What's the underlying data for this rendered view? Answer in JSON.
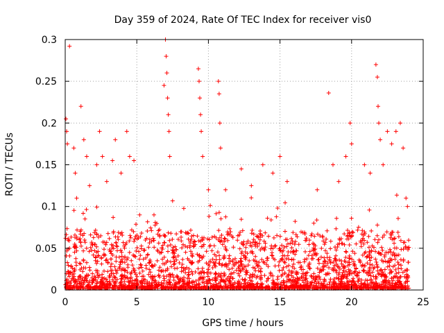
{
  "chart_data": {
    "type": "scatter",
    "title": "Day 359 of 2024, Rate Of TEC Index for receiver vis0",
    "xlabel": "GPS time / hours",
    "ylabel": "ROTI / TECUs",
    "xlim": [
      0,
      25
    ],
    "ylim": [
      0,
      0.3
    ],
    "x_ticks": [
      0,
      5,
      10,
      15,
      20,
      25
    ],
    "x_tick_labels": [
      "0",
      "5",
      "10",
      "15",
      "20",
      "25"
    ],
    "y_ticks": [
      0,
      0.05,
      0.1,
      0.15,
      0.2,
      0.25,
      0.3
    ],
    "y_tick_labels": [
      "0",
      "0.05",
      "0.1",
      "0.15",
      "0.2",
      "0.25",
      "0.3"
    ],
    "grid": true,
    "marker": "plus",
    "color": "#ff0000",
    "series": [
      {
        "name": "ROTI",
        "points": [
          [
            0.05,
            0.205
          ],
          [
            0.1,
            0.19
          ],
          [
            0.15,
            0.175
          ],
          [
            0.3,
            0.292
          ],
          [
            0.3,
            0.05
          ],
          [
            0.6,
            0.17
          ],
          [
            0.7,
            0.14
          ],
          [
            0.8,
            0.11
          ],
          [
            1.1,
            0.22
          ],
          [
            1.3,
            0.18
          ],
          [
            1.5,
            0.16
          ],
          [
            1.7,
            0.125
          ],
          [
            2.2,
            0.15
          ],
          [
            2.4,
            0.19
          ],
          [
            2.6,
            0.16
          ],
          [
            2.9,
            0.13
          ],
          [
            3.3,
            0.155
          ],
          [
            3.5,
            0.18
          ],
          [
            3.9,
            0.14
          ],
          [
            4.3,
            0.19
          ],
          [
            4.5,
            0.16
          ],
          [
            4.8,
            0.155
          ],
          [
            5.2,
            0.09
          ],
          [
            6.2,
            0.09
          ],
          [
            6.9,
            0.245
          ],
          [
            7.0,
            0.3
          ],
          [
            7.05,
            0.28
          ],
          [
            7.1,
            0.26
          ],
          [
            7.15,
            0.23
          ],
          [
            7.2,
            0.21
          ],
          [
            7.25,
            0.19
          ],
          [
            7.3,
            0.16
          ],
          [
            9.3,
            0.265
          ],
          [
            9.35,
            0.25
          ],
          [
            9.4,
            0.23
          ],
          [
            9.45,
            0.21
          ],
          [
            9.5,
            0.19
          ],
          [
            9.6,
            0.16
          ],
          [
            10.0,
            0.12
          ],
          [
            10.7,
            0.25
          ],
          [
            10.75,
            0.235
          ],
          [
            10.8,
            0.2
          ],
          [
            10.85,
            0.17
          ],
          [
            11.2,
            0.12
          ],
          [
            12.3,
            0.145
          ],
          [
            13.0,
            0.125
          ],
          [
            13.8,
            0.15
          ],
          [
            14.5,
            0.14
          ],
          [
            15.0,
            0.16
          ],
          [
            15.5,
            0.13
          ],
          [
            17.6,
            0.12
          ],
          [
            18.4,
            0.236
          ],
          [
            18.7,
            0.15
          ],
          [
            19.1,
            0.13
          ],
          [
            19.6,
            0.16
          ],
          [
            19.9,
            0.2
          ],
          [
            20.0,
            0.175
          ],
          [
            20.9,
            0.15
          ],
          [
            21.3,
            0.14
          ],
          [
            21.7,
            0.27
          ],
          [
            21.8,
            0.255
          ],
          [
            21.85,
            0.22
          ],
          [
            21.9,
            0.2
          ],
          [
            22.0,
            0.18
          ],
          [
            22.2,
            0.15
          ],
          [
            22.5,
            0.19
          ],
          [
            22.8,
            0.175
          ],
          [
            23.1,
            0.19
          ],
          [
            23.4,
            0.2
          ],
          [
            23.6,
            0.17
          ],
          [
            23.8,
            0.11
          ],
          [
            23.9,
            0.1
          ]
        ]
      }
    ]
  }
}
